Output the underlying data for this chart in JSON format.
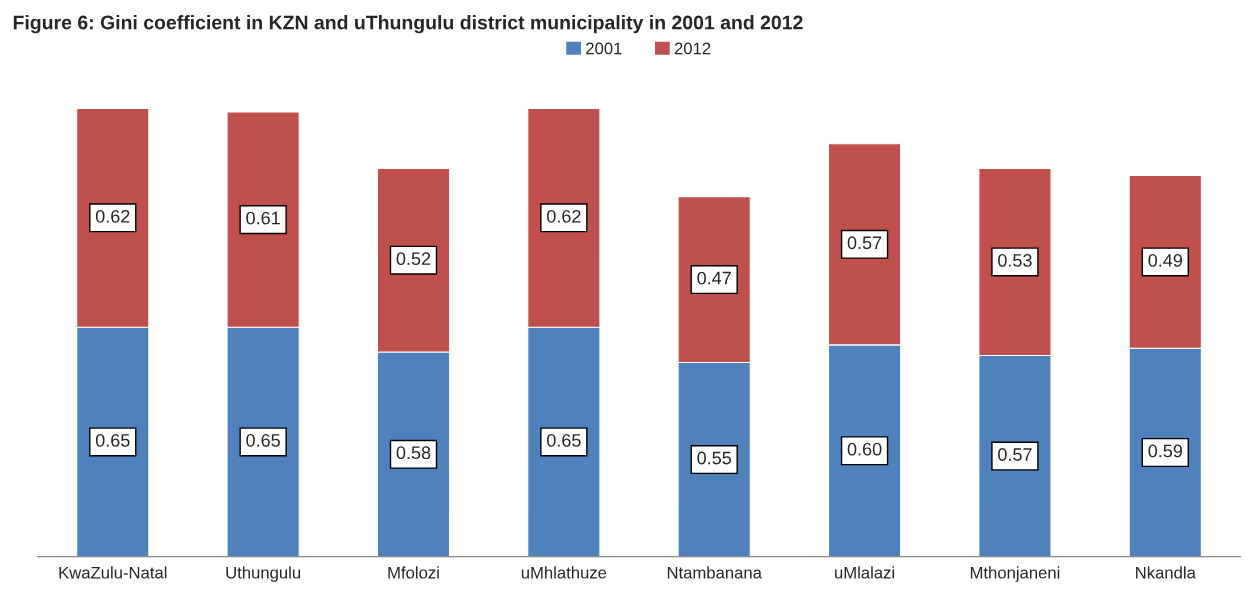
{
  "chart_data": {
    "type": "bar",
    "stacked": true,
    "legend": "top",
    "title": "Figure 6: Gini coefficient in KZN and uThungulu district municipality in 2001 and 2012",
    "categories": [
      "KwaZulu-Natal",
      "Uthungulu",
      "Mfolozi",
      "uMhlathuze",
      "Ntambanana",
      "uMlalazi",
      "Mthonjaneni",
      "Nkandla"
    ],
    "series": [
      {
        "name": "2001",
        "color": "#4f81bd",
        "values": [
          0.65,
          0.65,
          0.58,
          0.65,
          0.55,
          0.6,
          0.57,
          0.59
        ],
        "value_labels": [
          "0.65",
          "0.65",
          "0.58",
          "0.65",
          "0.55",
          "0.60",
          "0.57",
          "0.59"
        ]
      },
      {
        "name": "2012",
        "color": "#c0504d",
        "values": [
          0.62,
          0.61,
          0.52,
          0.62,
          0.47,
          0.57,
          0.53,
          0.49
        ],
        "value_labels": [
          "0.62",
          "0.61",
          "0.52",
          "0.62",
          "0.47",
          "0.57",
          "0.53",
          "0.49"
        ]
      }
    ]
  }
}
